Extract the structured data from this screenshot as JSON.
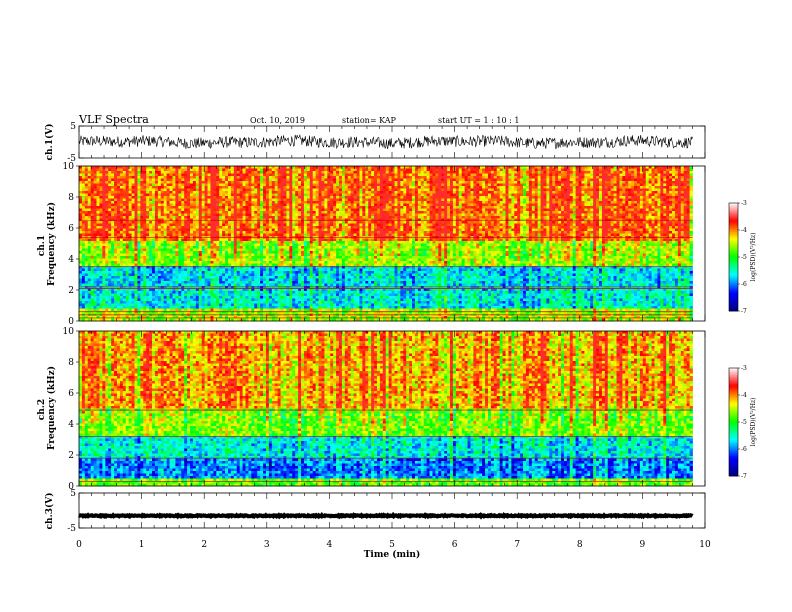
{
  "header": {
    "title": "VLF Spectra",
    "date": "Oct. 10, 2019",
    "station": "station= KAP",
    "start_ut": "start  UT =   1 : 10 : 1"
  },
  "chart_data": [
    {
      "type": "line",
      "name": "waveform-ch1",
      "ylabel": "ch.1(V)",
      "ylim": [
        -5,
        5
      ],
      "yticks": [
        "5",
        "-5"
      ],
      "xlim": [
        0,
        10
      ],
      "trace_mean": 0,
      "trace_amplitude_v": 1.8,
      "trace_end_min": 9.8
    },
    {
      "type": "heatmap",
      "name": "spectrogram-ch1",
      "ylabel": "ch.1\nFrequency  (kHz)",
      "ylim": [
        0,
        10
      ],
      "yticks": [
        "0",
        "2",
        "4",
        "6",
        "8",
        "10"
      ],
      "xlim": [
        0,
        10
      ],
      "data_end_min": 9.8,
      "band_levels": [
        {
          "from_khz": 0,
          "to_khz": 0.8,
          "log_psd": -4.6
        },
        {
          "from_khz": 0.8,
          "to_khz": 2.0,
          "log_psd": -5.6
        },
        {
          "from_khz": 2.0,
          "to_khz": 3.6,
          "log_psd": -5.7
        },
        {
          "from_khz": 3.6,
          "to_khz": 5.2,
          "log_psd": -4.6
        },
        {
          "from_khz": 5.2,
          "to_khz": 10,
          "log_psd": -3.9
        }
      ],
      "hum_lines_khz": [
        0.2,
        0.4,
        0.6,
        2.1,
        2.2,
        3.5,
        5.4,
        6.5
      ],
      "colorbar": {
        "label": "log(PSD)(V²/Hz)",
        "min": -7,
        "max": -3,
        "ticks": [
          "-3",
          "-4",
          "-5",
          "-6",
          "-7"
        ]
      }
    },
    {
      "type": "heatmap",
      "name": "spectrogram-ch2",
      "ylabel": "ch.2\nFrequency  (kHz)",
      "ylim": [
        0,
        10
      ],
      "yticks": [
        "0",
        "2",
        "4",
        "6",
        "8",
        "10"
      ],
      "xlim": [
        0,
        10
      ],
      "data_end_min": 9.8,
      "band_levels": [
        {
          "from_khz": 0,
          "to_khz": 0.5,
          "log_psd": -4.8
        },
        {
          "from_khz": 0.5,
          "to_khz": 1.8,
          "log_psd": -6.0
        },
        {
          "from_khz": 1.8,
          "to_khz": 3.2,
          "log_psd": -5.6
        },
        {
          "from_khz": 3.2,
          "to_khz": 5.0,
          "log_psd": -4.7
        },
        {
          "from_khz": 5.0,
          "to_khz": 10,
          "log_psd": -4.1
        }
      ],
      "hum_lines_khz": [
        0.3,
        1.8,
        3.2,
        4.9
      ],
      "colorbar": {
        "label": "log(PSD)(V²/Hz)",
        "min": -7,
        "max": -3,
        "ticks": [
          "-3",
          "-4",
          "-5",
          "-6",
          "-7"
        ]
      }
    },
    {
      "type": "line",
      "name": "waveform-ch3",
      "ylabel": "ch.3(V)",
      "ylim": [
        -5,
        5
      ],
      "yticks": [
        "5",
        "-5"
      ],
      "xlim": [
        0,
        10
      ],
      "trace_mean": -1.5,
      "trace_amplitude_v": 0.15,
      "trace_end_min": 9.8
    }
  ],
  "xaxis": {
    "label": "Time  (min)",
    "ticks": [
      "0",
      "1",
      "2",
      "3",
      "4",
      "5",
      "6",
      "7",
      "8",
      "9",
      "10"
    ]
  },
  "colors": {
    "colormap": [
      "#000080",
      "#0000ff",
      "#00ffff",
      "#00ff00",
      "#ffff00",
      "#ff0000",
      "#ffffff"
    ],
    "trace": "#000000"
  }
}
